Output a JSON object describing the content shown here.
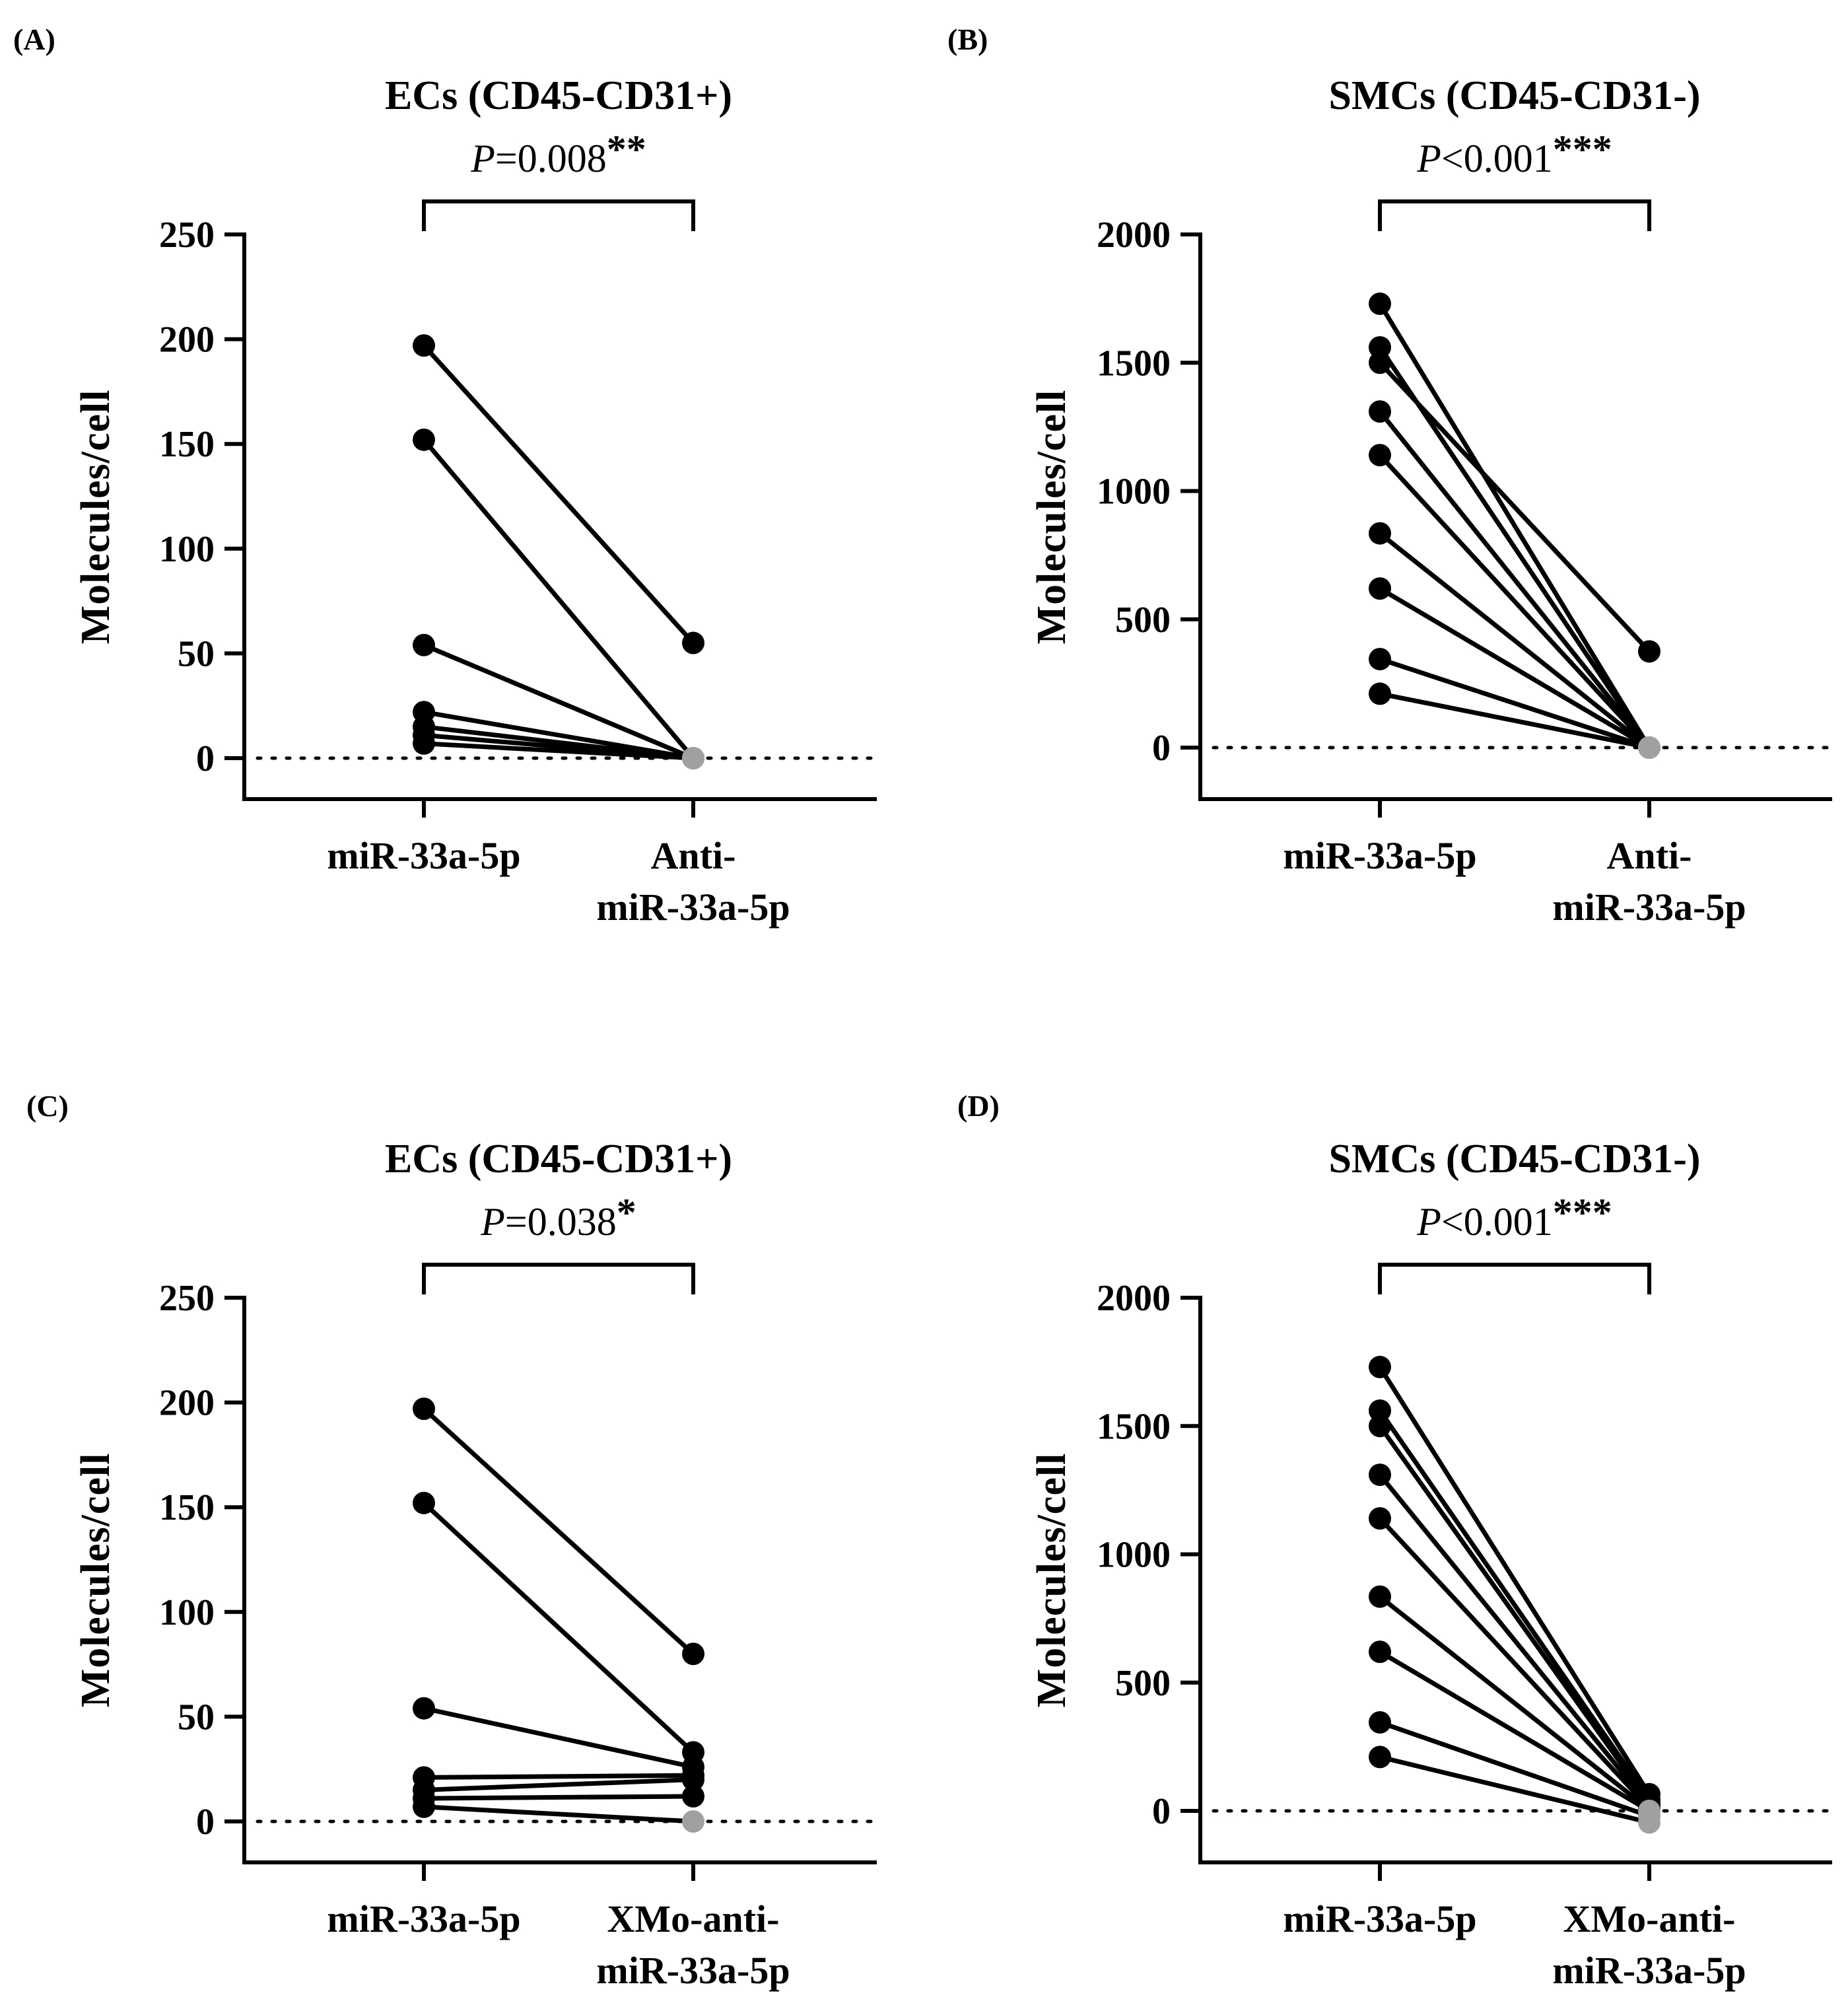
{
  "chart_data": [
    {
      "panel_label": "(A)",
      "type": "scatter",
      "title": "ECs (CD45-CD31+)",
      "p_prefix": "P",
      "p_value": "=0.008",
      "stars": "**",
      "ylabel": "Molecules/cell",
      "ylim": [
        -20,
        250
      ],
      "yticks": [
        "0",
        "50",
        "100",
        "150",
        "200",
        "250"
      ],
      "categories": [
        "miR-33a-5p",
        [
          "Anti-",
          "miR-33a-5p"
        ]
      ],
      "reference_line": 0,
      "colors": {
        "line": "#000000",
        "point": "#000000",
        "zero_point": "#a0a0a0"
      },
      "pairs": [
        {
          "before": 197,
          "after": 55
        },
        {
          "before": 152,
          "after": 0
        },
        {
          "before": 54,
          "after": 0
        },
        {
          "before": 22,
          "after": 0
        },
        {
          "before": 15,
          "after": 0
        },
        {
          "before": 11,
          "after": 0
        },
        {
          "before": 7,
          "after": 0
        }
      ]
    },
    {
      "panel_label": "(B)",
      "type": "scatter",
      "title": "SMCs (CD45-CD31-)",
      "p_prefix": "P",
      "p_value": "<0.001",
      "stars": "***",
      "ylabel": "Molecules/cell",
      "ylim": [
        -200,
        2000
      ],
      "yticks": [
        "0",
        "500",
        "1000",
        "1500",
        "2000"
      ],
      "categories": [
        "miR-33a-5p",
        [
          "Anti-",
          "miR-33a-5p"
        ]
      ],
      "reference_line": 0,
      "colors": {
        "line": "#000000",
        "point": "#000000",
        "zero_point": "#a0a0a0"
      },
      "pairs": [
        {
          "before": 1730,
          "after": 0
        },
        {
          "before": 1560,
          "after": 0
        },
        {
          "before": 1500,
          "after": 375
        },
        {
          "before": 1310,
          "after": 0
        },
        {
          "before": 1140,
          "after": 0
        },
        {
          "before": 835,
          "after": 0
        },
        {
          "before": 620,
          "after": 0
        },
        {
          "before": 345,
          "after": 0
        },
        {
          "before": 210,
          "after": 0
        }
      ]
    },
    {
      "panel_label": "(C)",
      "type": "scatter",
      "title": "ECs (CD45-CD31+)",
      "p_prefix": "P",
      "p_value": "=0.038",
      "stars": "*",
      "ylabel": "Molecules/cell",
      "ylim": [
        -20,
        250
      ],
      "yticks": [
        "0",
        "50",
        "100",
        "150",
        "200",
        "250"
      ],
      "categories": [
        "miR-33a-5p",
        [
          "XMo-anti-",
          "miR-33a-5p"
        ]
      ],
      "reference_line": 0,
      "colors": {
        "line": "#000000",
        "point": "#000000",
        "zero_point": "#a0a0a0"
      },
      "pairs": [
        {
          "before": 197,
          "after": 80
        },
        {
          "before": 152,
          "after": 33
        },
        {
          "before": 54,
          "after": 26
        },
        {
          "before": 21,
          "after": 22
        },
        {
          "before": 15,
          "after": 20
        },
        {
          "before": 11,
          "after": 12
        },
        {
          "before": 7,
          "after": 0
        }
      ]
    },
    {
      "panel_label": "(D)",
      "type": "scatter",
      "title": "SMCs (CD45-CD31-)",
      "p_prefix": "P",
      "p_value": "<0.001",
      "stars": "***",
      "ylabel": "Molecules/cell",
      "ylim": [
        -200,
        2000
      ],
      "yticks": [
        "0",
        "500",
        "1000",
        "1500",
        "2000"
      ],
      "categories": [
        "miR-33a-5p",
        [
          "XMo-anti-",
          "miR-33a-5p"
        ]
      ],
      "reference_line": 0,
      "colors": {
        "line": "#000000",
        "point": "#000000",
        "zero_point": "#a0a0a0"
      },
      "pairs": [
        {
          "before": 1730,
          "after": 65
        },
        {
          "before": 1560,
          "after": 45
        },
        {
          "before": 1500,
          "after": 30
        },
        {
          "before": 1310,
          "after": 20
        },
        {
          "before": 1140,
          "after": 10
        },
        {
          "before": 835,
          "after": 5
        },
        {
          "before": 620,
          "after": 0
        },
        {
          "before": 345,
          "after": -20
        },
        {
          "before": 210,
          "after": -45
        }
      ]
    }
  ]
}
